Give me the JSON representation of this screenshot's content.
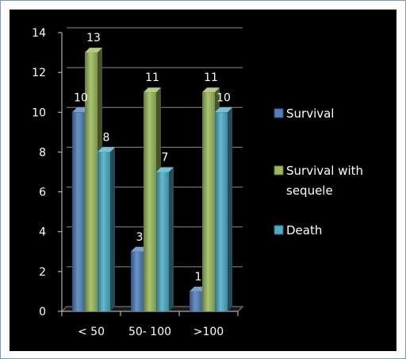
{
  "chart_data": {
    "type": "bar",
    "categories": [
      "< 50",
      "50- 100",
      ">100"
    ],
    "series": [
      {
        "name": "Survival",
        "values": [
          10,
          3,
          1
        ],
        "color": "#4f81bd"
      },
      {
        "name": "Survival with sequele",
        "values": [
          13,
          11,
          11
        ],
        "color": "#9bbb59"
      },
      {
        "name": "Death",
        "values": [
          8,
          7,
          10
        ],
        "color": "#4bacc6"
      }
    ],
    "data_labels": [
      [
        "10",
        "3",
        "1"
      ],
      [
        "13",
        "11",
        "11"
      ],
      [
        "8",
        "7",
        "10"
      ]
    ],
    "ylim": [
      0,
      14
    ],
    "yticks": [
      "0",
      "2",
      "4",
      "6",
      "8",
      "10",
      "12",
      "14"
    ],
    "grid": true,
    "legend_position": "right",
    "legend_labels": [
      [
        "Survival"
      ],
      [
        "Survival with",
        "sequele"
      ],
      [
        "Death"
      ]
    ],
    "style": "3d-bar",
    "background": "#000000",
    "text_color": "#ffffff"
  }
}
